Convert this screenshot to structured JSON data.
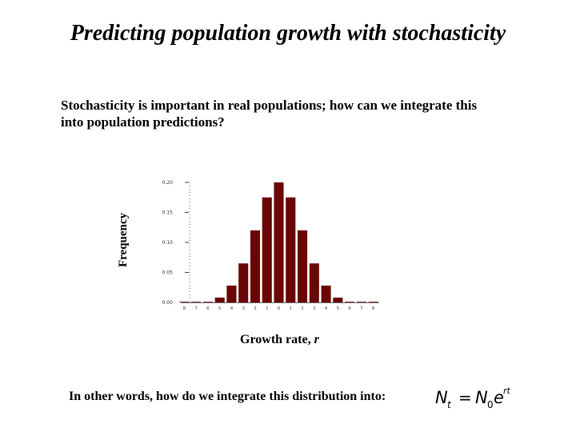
{
  "slide": {
    "title": "Predicting population growth with stochasticity",
    "subtitle_line1": "Stochasticity is important in real populations; how can we integrate this",
    "subtitle_line2": "into population predictions?",
    "xlabel_text": "Growth rate, ",
    "xlabel_var": "r",
    "footer": "In other words, how do we integrate this distribution into:",
    "equation": {
      "lhs": "N",
      "lhs_sub": "t",
      "equals": "=",
      "rhs": "N",
      "rhs_sub": "0",
      "base": "e",
      "exponent": "rt"
    }
  },
  "chart_data": {
    "type": "bar",
    "ylabel": "Frequency",
    "xlabel": "Growth rate, r",
    "ylim": [
      0,
      0.2
    ],
    "yticks": [
      "0.00",
      "0.05",
      "0.10",
      "0.15",
      "0.20"
    ],
    "ytick_values": [
      0,
      0.05,
      0.1,
      0.15,
      0.2
    ],
    "categories": [
      "8",
      "7",
      "6",
      "5",
      "4",
      "3",
      "2",
      "1",
      "0",
      "1",
      "2",
      "3",
      "4",
      "5",
      "6",
      "7",
      "8"
    ],
    "values": [
      0.0,
      0.0,
      0.001,
      0.008,
      0.028,
      0.065,
      0.12,
      0.175,
      0.2,
      0.175,
      0.12,
      0.065,
      0.028,
      0.008,
      0.001,
      0.0,
      0.0
    ],
    "bar_color": "#6b0606",
    "grid": false
  }
}
